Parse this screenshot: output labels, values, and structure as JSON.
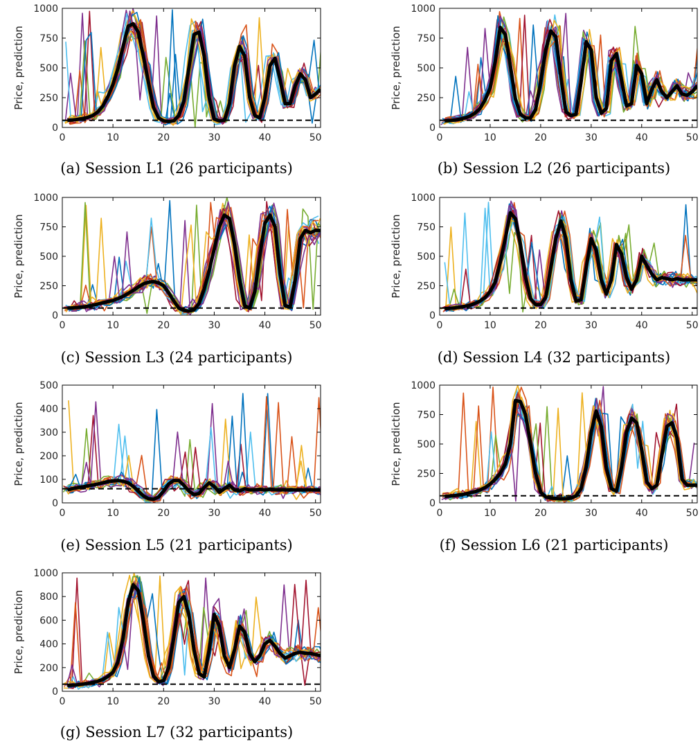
{
  "figure": {
    "individual_colors": [
      "#0072BD",
      "#D95319",
      "#EDB120",
      "#7E2F8E",
      "#77AC30",
      "#4DBEEE",
      "#A2142F"
    ],
    "mean_color": "#000000",
    "reference_color": "#000000"
  },
  "chart_data": [
    {
      "type": "line",
      "id": "L1",
      "caption": "(a) Session L1 (26 participants)",
      "ylabel": "Price, prediction",
      "xlim": [
        0,
        51
      ],
      "ylim": [
        0,
        1000
      ],
      "xticks": [
        0,
        10,
        20,
        30,
        40,
        50
      ],
      "yticks": [
        0,
        250,
        500,
        750,
        1000
      ],
      "reference_level": 60,
      "participants": 26,
      "mean_series": {
        "x": [
          1,
          2,
          3,
          4,
          5,
          6,
          7,
          8,
          9,
          10,
          11,
          12,
          13,
          14,
          15,
          16,
          17,
          18,
          19,
          20,
          21,
          22,
          23,
          24,
          25,
          26,
          27,
          28,
          29,
          30,
          31,
          32,
          33,
          34,
          35,
          36,
          37,
          38,
          39,
          40,
          41,
          42,
          43,
          44,
          45,
          46,
          47,
          48,
          49,
          50,
          51
        ],
        "values": [
          60,
          62,
          68,
          75,
          85,
          100,
          130,
          180,
          260,
          360,
          500,
          680,
          850,
          870,
          800,
          600,
          380,
          170,
          80,
          55,
          50,
          55,
          100,
          220,
          500,
          780,
          800,
          600,
          250,
          70,
          55,
          60,
          200,
          520,
          680,
          600,
          250,
          100,
          80,
          250,
          520,
          580,
          400,
          200,
          200,
          350,
          450,
          400,
          250,
          280,
          320
        ]
      }
    },
    {
      "type": "line",
      "id": "L2",
      "caption": "(b) Session L2 (26 participants)",
      "ylabel": "Price, prediction",
      "xlim": [
        0,
        51
      ],
      "ylim": [
        0,
        1000
      ],
      "xticks": [
        0,
        10,
        20,
        30,
        40,
        50
      ],
      "yticks": [
        0,
        250,
        500,
        750,
        1000
      ],
      "reference_level": 60,
      "participants": 26,
      "mean_series": {
        "x": [
          1,
          2,
          3,
          4,
          5,
          6,
          7,
          8,
          9,
          10,
          11,
          12,
          13,
          14,
          15,
          16,
          17,
          18,
          19,
          20,
          21,
          22,
          23,
          24,
          25,
          26,
          27,
          28,
          29,
          30,
          31,
          32,
          33,
          34,
          35,
          36,
          37,
          38,
          39,
          40,
          41,
          42,
          43,
          44,
          45,
          46,
          47,
          48,
          49,
          50,
          51
        ],
        "values": [
          55,
          58,
          62,
          70,
          80,
          95,
          120,
          160,
          230,
          330,
          550,
          840,
          780,
          520,
          240,
          110,
          80,
          80,
          150,
          380,
          650,
          810,
          760,
          420,
          130,
          100,
          110,
          380,
          720,
          650,
          250,
          120,
          160,
          560,
          620,
          400,
          180,
          200,
          520,
          450,
          200,
          320,
          400,
          300,
          250,
          300,
          350,
          280,
          270,
          300,
          350
        ]
      }
    },
    {
      "type": "line",
      "id": "L3",
      "caption": "(c) Session L3 (24 participants)",
      "ylabel": "Price, prediction",
      "xlim": [
        0,
        51
      ],
      "ylim": [
        0,
        1000
      ],
      "xticks": [
        0,
        10,
        20,
        30,
        40,
        50
      ],
      "yticks": [
        0,
        250,
        500,
        750,
        1000
      ],
      "reference_level": 60,
      "participants": 24,
      "mean_series": {
        "x": [
          1,
          2,
          3,
          4,
          5,
          6,
          7,
          8,
          9,
          10,
          11,
          12,
          13,
          14,
          15,
          16,
          17,
          18,
          19,
          20,
          21,
          22,
          23,
          24,
          25,
          26,
          27,
          28,
          29,
          30,
          31,
          32,
          33,
          34,
          35,
          36,
          37,
          38,
          39,
          40,
          41,
          42,
          43,
          44,
          45,
          46,
          47,
          48,
          49,
          50,
          51
        ],
        "values": [
          60,
          62,
          65,
          70,
          75,
          85,
          95,
          105,
          115,
          125,
          140,
          160,
          185,
          210,
          240,
          265,
          280,
          285,
          275,
          250,
          190,
          120,
          60,
          40,
          35,
          45,
          100,
          220,
          380,
          560,
          750,
          850,
          820,
          600,
          300,
          80,
          60,
          200,
          500,
          780,
          850,
          750,
          350,
          80,
          70,
          300,
          650,
          720,
          700,
          720,
          720
        ]
      }
    },
    {
      "type": "line",
      "id": "L4",
      "caption": "(d) Session L4 (32 participants)",
      "ylabel": "Price, prediction",
      "xlim": [
        0,
        51
      ],
      "ylim": [
        0,
        1000
      ],
      "xticks": [
        0,
        10,
        20,
        30,
        40,
        50
      ],
      "yticks": [
        0,
        250,
        500,
        750,
        1000
      ],
      "reference_level": 60,
      "participants": 32,
      "mean_series": {
        "x": [
          1,
          2,
          3,
          4,
          5,
          6,
          7,
          8,
          9,
          10,
          11,
          12,
          13,
          14,
          15,
          16,
          17,
          18,
          19,
          20,
          21,
          22,
          23,
          24,
          25,
          26,
          27,
          28,
          29,
          30,
          31,
          32,
          33,
          34,
          35,
          36,
          37,
          38,
          39,
          40,
          41,
          42,
          43,
          44,
          45,
          46,
          47,
          48,
          49,
          50,
          51
        ],
        "values": [
          55,
          58,
          62,
          68,
          75,
          85,
          100,
          120,
          150,
          200,
          280,
          450,
          650,
          870,
          820,
          600,
          320,
          140,
          90,
          90,
          150,
          400,
          650,
          800,
          650,
          300,
          120,
          130,
          400,
          650,
          550,
          300,
          180,
          300,
          600,
          520,
          320,
          220,
          300,
          500,
          420,
          350,
          300,
          320,
          310,
          300,
          310,
          300,
          300,
          300,
          300
        ]
      }
    },
    {
      "type": "line",
      "id": "L5",
      "caption": "(e) Session L5 (21 participants)",
      "ylabel": "Price, prediction",
      "xlim": [
        0,
        51
      ],
      "ylim": [
        0,
        500
      ],
      "xticks": [
        0,
        10,
        20,
        30,
        40,
        50
      ],
      "yticks": [
        0,
        100,
        200,
        300,
        400,
        500
      ],
      "reference_level": 60,
      "participants": 21,
      "mean_series": {
        "x": [
          1,
          2,
          3,
          4,
          5,
          6,
          7,
          8,
          9,
          10,
          11,
          12,
          13,
          14,
          15,
          16,
          17,
          18,
          19,
          20,
          21,
          22,
          23,
          24,
          25,
          26,
          27,
          28,
          29,
          30,
          31,
          32,
          33,
          34,
          35,
          36,
          37,
          38,
          39,
          40,
          41,
          42,
          43,
          44,
          45,
          46,
          47,
          48,
          49,
          50,
          51
        ],
        "values": [
          55,
          60,
          65,
          68,
          72,
          76,
          80,
          85,
          90,
          93,
          95,
          92,
          85,
          70,
          50,
          30,
          18,
          15,
          25,
          50,
          80,
          95,
          95,
          75,
          50,
          35,
          40,
          65,
          85,
          70,
          45,
          60,
          75,
          55,
          50,
          60,
          55,
          55,
          58,
          55,
          58,
          56,
          55,
          56,
          55,
          55,
          55,
          55,
          55,
          55,
          55
        ]
      }
    },
    {
      "type": "line",
      "id": "L6",
      "caption": "(f) Session L6 (21 participants)",
      "ylabel": "Price, prediction",
      "xlim": [
        0,
        51
      ],
      "ylim": [
        0,
        1000
      ],
      "xticks": [
        0,
        10,
        20,
        30,
        40,
        50
      ],
      "yticks": [
        0,
        250,
        500,
        750,
        1000
      ],
      "reference_level": 60,
      "participants": 21,
      "mean_series": {
        "x": [
          1,
          2,
          3,
          4,
          5,
          6,
          7,
          8,
          9,
          10,
          11,
          12,
          13,
          14,
          15,
          16,
          17,
          18,
          19,
          20,
          21,
          22,
          23,
          24,
          25,
          26,
          27,
          28,
          29,
          30,
          31,
          32,
          33,
          34,
          35,
          36,
          37,
          38,
          39,
          40,
          41,
          42,
          43,
          44,
          45,
          46,
          47,
          48,
          49,
          50,
          51
        ],
        "values": [
          55,
          58,
          62,
          68,
          75,
          85,
          95,
          110,
          130,
          160,
          200,
          250,
          330,
          500,
          870,
          860,
          750,
          500,
          250,
          90,
          50,
          40,
          38,
          35,
          35,
          40,
          60,
          120,
          300,
          600,
          780,
          650,
          300,
          120,
          100,
          300,
          600,
          720,
          680,
          450,
          180,
          120,
          150,
          400,
          650,
          680,
          550,
          200,
          150,
          150,
          150
        ]
      }
    },
    {
      "type": "line",
      "id": "L7",
      "caption": "(g) Session L7 (32 participants)",
      "ylabel": "Price, prediction",
      "xlim": [
        0,
        51
      ],
      "ylim": [
        0,
        1000
      ],
      "xticks": [
        0,
        10,
        20,
        30,
        40,
        50
      ],
      "yticks": [
        0,
        200,
        400,
        600,
        800,
        1000
      ],
      "reference_level": 60,
      "participants": 32,
      "mean_series": {
        "x": [
          1,
          2,
          3,
          4,
          5,
          6,
          7,
          8,
          9,
          10,
          11,
          12,
          13,
          14,
          15,
          16,
          17,
          18,
          19,
          20,
          21,
          22,
          23,
          24,
          25,
          26,
          27,
          28,
          29,
          30,
          31,
          32,
          33,
          34,
          35,
          36,
          37,
          38,
          39,
          40,
          41,
          42,
          43,
          44,
          45,
          46,
          47,
          48,
          49,
          50,
          51
        ],
        "values": [
          50,
          52,
          55,
          60,
          66,
          75,
          85,
          100,
          125,
          160,
          250,
          450,
          750,
          900,
          850,
          600,
          300,
          130,
          80,
          90,
          200,
          450,
          750,
          800,
          650,
          350,
          150,
          120,
          350,
          650,
          550,
          300,
          200,
          350,
          550,
          500,
          320,
          250,
          300,
          400,
          430,
          380,
          320,
          280,
          300,
          320,
          330,
          320,
          320,
          310,
          300
        ]
      }
    }
  ]
}
